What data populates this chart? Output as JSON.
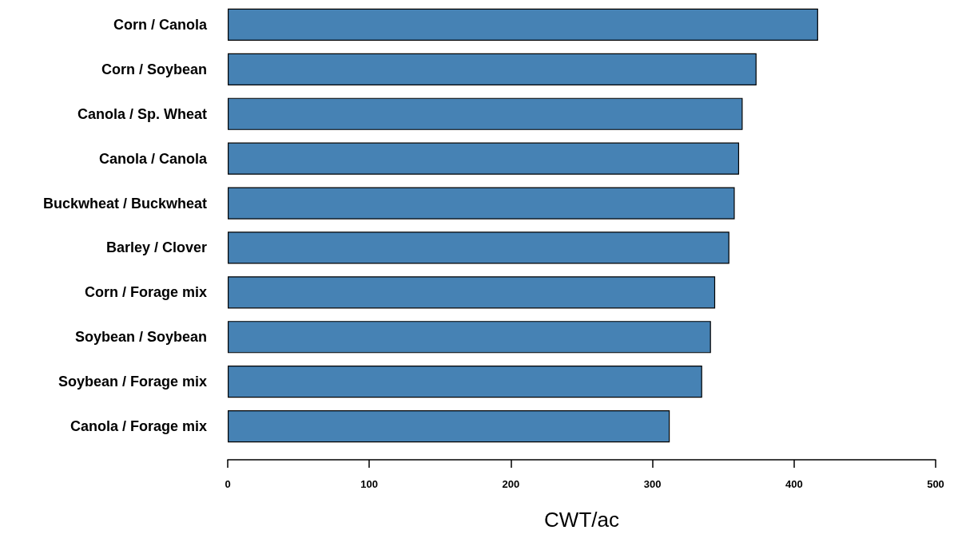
{
  "chart_data": {
    "type": "bar",
    "orientation": "horizontal",
    "xlabel": "CWT/ac",
    "categories": [
      "Corn / Canola",
      "Corn / Soybean",
      "Canola / Sp. Wheat",
      "Canola / Canola",
      "Buckwheat / Buckwheat",
      "Barley / Clover",
      "Corn / Forage mix",
      "Soybean / Soybean",
      "Soybean / Forage mix",
      "Canola / Forage mix"
    ],
    "values": [
      417,
      373.5,
      363.7,
      361.2,
      358.1,
      354.3,
      344.3,
      341.3,
      335.1,
      312.2
    ],
    "color": "#4682b4",
    "xlim": [
      0,
      500
    ],
    "xticks": [
      0,
      100,
      200,
      300,
      400,
      500
    ]
  }
}
